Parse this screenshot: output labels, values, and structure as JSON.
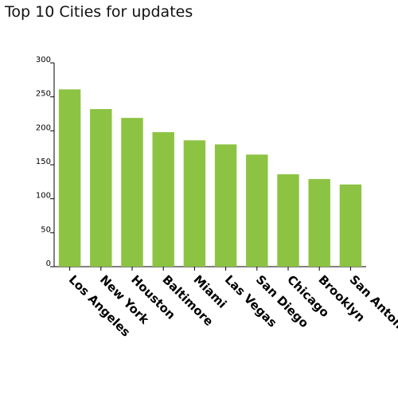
{
  "title": "Top 10 Cities for updates",
  "colors": {
    "bar": "#8dc343",
    "axis": "#000000",
    "text": "#000000"
  },
  "chart_data": {
    "type": "bar",
    "title": "Top 10 Cities for updates",
    "xlabel": "",
    "ylabel": "",
    "categories": [
      "Los Angeles",
      "New York",
      "Houston",
      "Baltimore",
      "Miami",
      "Las Vegas",
      "San Diego",
      "Chicago",
      "Brooklyn",
      "San Antonio"
    ],
    "values": [
      261,
      232,
      219,
      198,
      186,
      180,
      165,
      136,
      129,
      121
    ],
    "ylim": [
      0,
      300
    ],
    "yticks": [
      0,
      50,
      100,
      150,
      200,
      250,
      300
    ],
    "ytick_labels": [
      "0",
      "50",
      "100",
      "150",
      "200",
      "250",
      "300"
    ],
    "grid": false,
    "legend": "none"
  }
}
